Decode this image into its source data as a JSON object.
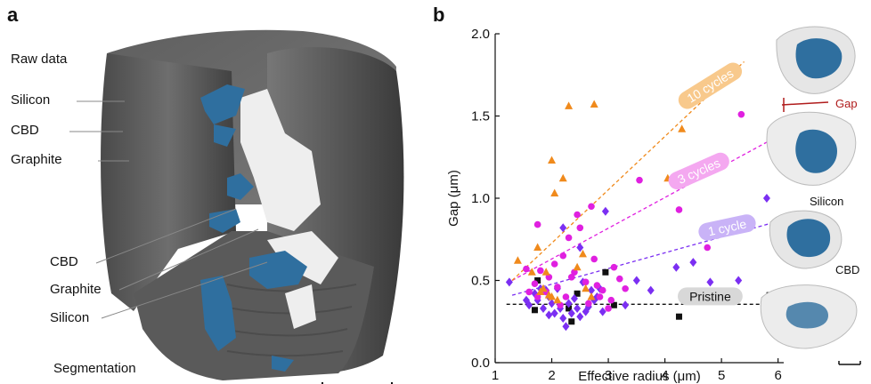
{
  "panel_a": {
    "letter": "a",
    "top_labels": [
      "Raw data",
      "Silicon",
      "CBD",
      "Graphite"
    ],
    "bottom_labels": [
      "CBD",
      "Graphite",
      "Silicon"
    ],
    "segmentation_label": "Segmentation"
  },
  "panel_b": {
    "letter": "b",
    "inset_labels": {
      "gap": "Gap",
      "silicon": "Silicon",
      "cbd": "CBD"
    }
  },
  "colors": {
    "pristine": "#111111",
    "cycle1": "#7b2ff2",
    "cycle3": "#e020e0",
    "cycle10": "#f08a1c",
    "segment_blue": "#2f6f9f",
    "gap_red": "#b01c1c"
  },
  "chart_data": {
    "type": "scatter",
    "xlabel": "Effective radius (μm)",
    "ylabel": "Gap (μm)",
    "xlim": [
      1,
      6.1
    ],
    "ylim": [
      0,
      2.0
    ],
    "xticks": [
      "1",
      "2",
      "3",
      "4",
      "5",
      "6"
    ],
    "yticks": [
      "0.0",
      "0.5",
      "1.0",
      "1.5",
      "2.0"
    ],
    "grid": false,
    "series": [
      {
        "name": "Pristine",
        "marker": "square",
        "fit": {
          "x": [
            1.2,
            5.9
          ],
          "y": [
            0.355,
            0.355
          ]
        },
        "points": [
          [
            1.7,
            0.32
          ],
          [
            1.75,
            0.5
          ],
          [
            2.3,
            0.33
          ],
          [
            2.35,
            0.25
          ],
          [
            2.45,
            0.42
          ],
          [
            2.95,
            0.55
          ],
          [
            3.1,
            0.35
          ],
          [
            4.25,
            0.28
          ],
          [
            5.85,
            0.41
          ]
        ]
      },
      {
        "name": "1 cycle",
        "marker": "diamond",
        "fit": {
          "x": [
            1.3,
            5.9
          ],
          "y": [
            0.41,
            0.85
          ]
        },
        "points": [
          [
            1.25,
            0.49
          ],
          [
            1.55,
            0.38
          ],
          [
            1.6,
            0.35
          ],
          [
            1.7,
            0.42
          ],
          [
            1.75,
            0.38
          ],
          [
            1.8,
            0.45
          ],
          [
            1.85,
            0.33
          ],
          [
            1.9,
            0.44
          ],
          [
            1.95,
            0.4
          ],
          [
            2.0,
            0.36
          ],
          [
            2.05,
            0.3
          ],
          [
            2.1,
            0.45
          ],
          [
            2.15,
            0.33
          ],
          [
            2.2,
            0.27
          ],
          [
            2.25,
            0.22
          ],
          [
            2.3,
            0.36
          ],
          [
            2.35,
            0.3
          ],
          [
            2.4,
            0.39
          ],
          [
            2.45,
            0.33
          ],
          [
            2.5,
            0.28
          ],
          [
            2.6,
            0.31
          ],
          [
            2.65,
            0.34
          ],
          [
            2.7,
            0.44
          ],
          [
            2.75,
            0.38
          ],
          [
            2.8,
            0.4
          ],
          [
            2.85,
            0.45
          ],
          [
            2.9,
            0.31
          ],
          [
            2.2,
            0.82
          ],
          [
            2.5,
            0.7
          ],
          [
            2.95,
            0.92
          ],
          [
            3.3,
            0.35
          ],
          [
            3.5,
            0.5
          ],
          [
            3.75,
            0.44
          ],
          [
            4.2,
            0.58
          ],
          [
            4.5,
            0.61
          ],
          [
            4.8,
            0.49
          ],
          [
            5.3,
            0.5
          ],
          [
            5.8,
            1.0
          ],
          [
            1.95,
            0.29
          ],
          [
            2.55,
            0.49
          ]
        ]
      },
      {
        "name": "3 cycles",
        "marker": "circle",
        "fit": {
          "x": [
            1.3,
            5.85
          ],
          "y": [
            0.5,
            1.35
          ]
        },
        "points": [
          [
            1.55,
            0.57
          ],
          [
            1.7,
            0.48
          ],
          [
            1.75,
            0.4
          ],
          [
            1.8,
            0.56
          ],
          [
            1.9,
            0.43
          ],
          [
            1.95,
            0.52
          ],
          [
            2.05,
            0.6
          ],
          [
            2.1,
            0.46
          ],
          [
            2.2,
            0.65
          ],
          [
            2.25,
            0.4
          ],
          [
            2.3,
            0.76
          ],
          [
            2.4,
            0.55
          ],
          [
            2.45,
            0.9
          ],
          [
            2.5,
            0.82
          ],
          [
            2.6,
            0.49
          ],
          [
            2.7,
            0.95
          ],
          [
            2.75,
            0.63
          ],
          [
            2.8,
            0.47
          ],
          [
            2.85,
            0.4
          ],
          [
            2.9,
            0.44
          ],
          [
            3.0,
            0.33
          ],
          [
            3.1,
            0.58
          ],
          [
            3.2,
            0.51
          ],
          [
            3.3,
            0.45
          ],
          [
            3.55,
            1.11
          ],
          [
            4.25,
            0.93
          ],
          [
            4.75,
            0.7
          ],
          [
            5.35,
            1.51
          ],
          [
            1.75,
            0.84
          ],
          [
            2.65,
            0.36
          ],
          [
            1.6,
            0.43
          ],
          [
            2.15,
            0.35
          ],
          [
            2.35,
            0.52
          ],
          [
            3.05,
            0.38
          ]
        ]
      },
      {
        "name": "10 cycles",
        "marker": "triangle",
        "fit": {
          "x": [
            1.3,
            5.4
          ],
          "y": [
            0.5,
            1.83
          ]
        },
        "points": [
          [
            1.4,
            0.62
          ],
          [
            1.65,
            0.55
          ],
          [
            1.75,
            0.7
          ],
          [
            1.85,
            0.45
          ],
          [
            1.9,
            0.55
          ],
          [
            1.95,
            0.41
          ],
          [
            2.0,
            1.23
          ],
          [
            2.05,
            1.03
          ],
          [
            2.1,
            0.38
          ],
          [
            2.2,
            1.12
          ],
          [
            2.3,
            1.56
          ],
          [
            2.45,
            0.58
          ],
          [
            2.55,
            0.66
          ],
          [
            2.7,
            0.4
          ],
          [
            2.75,
            1.57
          ],
          [
            1.8,
            0.43
          ],
          [
            4.05,
            1.12
          ],
          [
            4.3,
            1.42
          ],
          [
            2.0,
            0.4
          ],
          [
            2.6,
            0.45
          ]
        ]
      }
    ],
    "fit_labels": [
      {
        "text": "Pristine",
        "series": "Pristine"
      },
      {
        "text": "1 cycle",
        "series": "1 cycle"
      },
      {
        "text": "3 cycles",
        "series": "3 cycles"
      },
      {
        "text": "10 cycles",
        "series": "10 cycles"
      }
    ]
  }
}
